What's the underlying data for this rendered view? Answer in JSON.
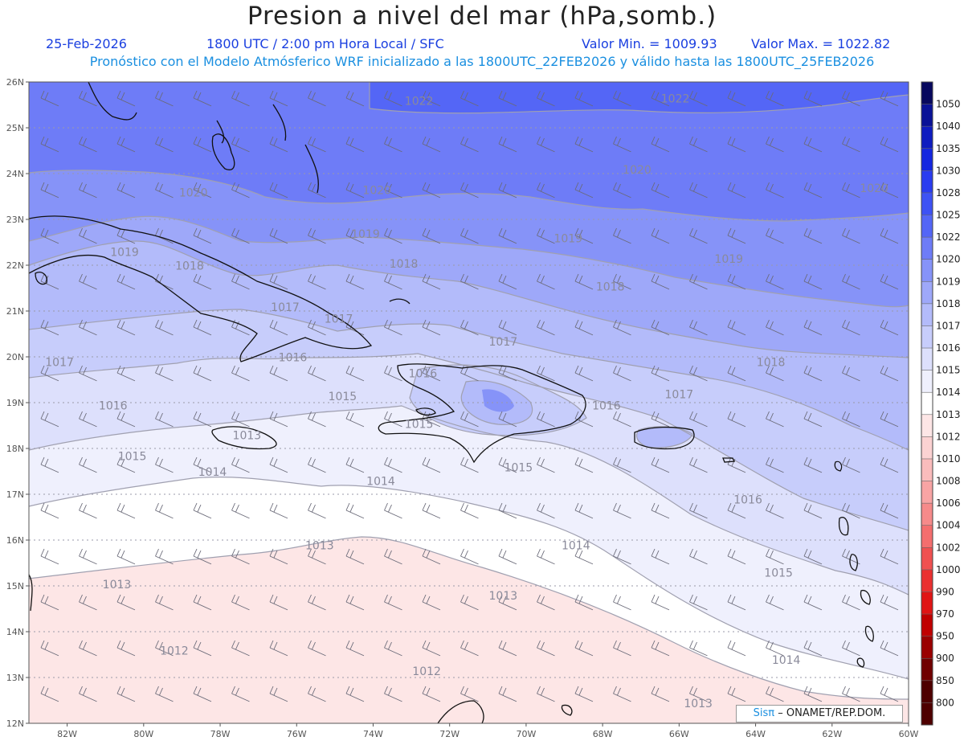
{
  "header": {
    "title": "Presion a nivel del mar (hPa,somb.)",
    "date": "25-Feb-2026",
    "time": "1800 UTC / 2:00 pm Hora Local / SFC",
    "vmin": "Valor Min. = 1009.93",
    "vmax": "Valor Max. = 1022.82",
    "subtitle": "Pronóstico con el Modelo Atmósferico WRF inicializado a las 1800UTC_22FEB2026 y válido hasta las  1800UTC_25FEB2026"
  },
  "map": {
    "lat_labels": [
      "26N",
      "25N",
      "24N",
      "23N",
      "22N",
      "21N",
      "20N",
      "19N",
      "18N",
      "17N",
      "16N",
      "15N",
      "14N",
      "13N",
      "12N"
    ],
    "lon_labels": [
      "82W",
      "80W",
      "78W",
      "76W",
      "74W",
      "72W",
      "70W",
      "68W",
      "66W",
      "64W",
      "62W",
      "60W"
    ],
    "contour_labels": [
      {
        "text": "1022",
        "lon": -72.8,
        "lat": 25.5
      },
      {
        "text": "1022",
        "lon": -66.1,
        "lat": 25.55
      },
      {
        "text": "1020",
        "lon": -78.7,
        "lat": 23.5
      },
      {
        "text": "1020",
        "lon": -73.9,
        "lat": 23.55
      },
      {
        "text": "1020",
        "lon": -67.1,
        "lat": 24.0
      },
      {
        "text": "1020",
        "lon": -60.9,
        "lat": 23.6
      },
      {
        "text": "1019",
        "lon": -74.2,
        "lat": 22.6
      },
      {
        "text": "1019",
        "lon": -68.9,
        "lat": 22.5
      },
      {
        "text": "1019",
        "lon": -64.7,
        "lat": 22.05
      },
      {
        "text": "1019",
        "lon": -80.5,
        "lat": 22.2
      },
      {
        "text": "1018",
        "lon": -78.8,
        "lat": 21.9
      },
      {
        "text": "1018",
        "lon": -73.2,
        "lat": 21.95
      },
      {
        "text": "1018",
        "lon": -67.8,
        "lat": 21.45
      },
      {
        "text": "1018",
        "lon": -63.6,
        "lat": 19.8
      },
      {
        "text": "1017",
        "lon": -76.3,
        "lat": 21.0
      },
      {
        "text": "1017",
        "lon": -74.9,
        "lat": 20.75
      },
      {
        "text": "1017",
        "lon": -82.2,
        "lat": 19.8
      },
      {
        "text": "1017",
        "lon": -70.6,
        "lat": 20.25
      },
      {
        "text": "1017",
        "lon": -66.0,
        "lat": 19.1
      },
      {
        "text": "1016",
        "lon": -76.1,
        "lat": 19.9
      },
      {
        "text": "1016",
        "lon": -72.7,
        "lat": 19.55
      },
      {
        "text": "1016",
        "lon": -80.8,
        "lat": 18.85
      },
      {
        "text": "1016",
        "lon": -67.9,
        "lat": 18.85
      },
      {
        "text": "1016",
        "lon": -64.2,
        "lat": 16.8
      },
      {
        "text": "1015",
        "lon": -74.8,
        "lat": 19.05
      },
      {
        "text": "1015",
        "lon": -72.8,
        "lat": 18.45
      },
      {
        "text": "1015",
        "lon": -80.3,
        "lat": 17.75
      },
      {
        "text": "1015",
        "lon": -70.2,
        "lat": 17.5
      },
      {
        "text": "1015",
        "lon": -63.4,
        "lat": 15.2
      },
      {
        "text": "1014",
        "lon": -78.2,
        "lat": 17.4
      },
      {
        "text": "1014",
        "lon": -73.8,
        "lat": 17.2
      },
      {
        "text": "1014",
        "lon": -68.7,
        "lat": 15.8
      },
      {
        "text": "1014",
        "lon": -63.2,
        "lat": 13.3
      },
      {
        "text": "1013",
        "lon": -77.3,
        "lat": 18.2
      },
      {
        "text": "1013",
        "lon": -75.4,
        "lat": 15.8
      },
      {
        "text": "1013",
        "lon": -80.7,
        "lat": 14.95
      },
      {
        "text": "1013",
        "lon": -70.6,
        "lat": 14.7
      },
      {
        "text": "1013",
        "lon": -65.5,
        "lat": 12.35
      },
      {
        "text": "1012",
        "lon": -79.2,
        "lat": 13.5
      },
      {
        "text": "1012",
        "lon": -72.6,
        "lat": 13.05
      }
    ]
  },
  "colorbar": {
    "levels": [
      "1050",
      "1040",
      "1035",
      "1030",
      "1028",
      "1025",
      "1022",
      "1020",
      "1019",
      "1018",
      "1017",
      "1016",
      "1015",
      "1014",
      "1013",
      "1012",
      "1010",
      "1008",
      "1006",
      "1004",
      "1002",
      "1000",
      "990",
      "970",
      "950",
      "900",
      "850",
      "800"
    ],
    "colors": [
      "#07085e",
      "#0a1297",
      "#0f1cc0",
      "#1426e0",
      "#2a3cf0",
      "#3e52f4",
      "#5466f6",
      "#6e7cf7",
      "#8693f8",
      "#9ea8f9",
      "#b3bbfa",
      "#c7cdfb",
      "#dde0fc",
      "#eff0fd",
      "#ffffff",
      "#fde6e6",
      "#fbd2d2",
      "#fabcbc",
      "#f8a4a4",
      "#f68a8a",
      "#f46e6e",
      "#f05050",
      "#ea3030",
      "#e01414",
      "#c00000",
      "#9a0000",
      "#700000",
      "#4e0000"
    ]
  },
  "credit": {
    "brand": "Sisπ",
    "org": "– ONAMET/REP.DOM."
  }
}
